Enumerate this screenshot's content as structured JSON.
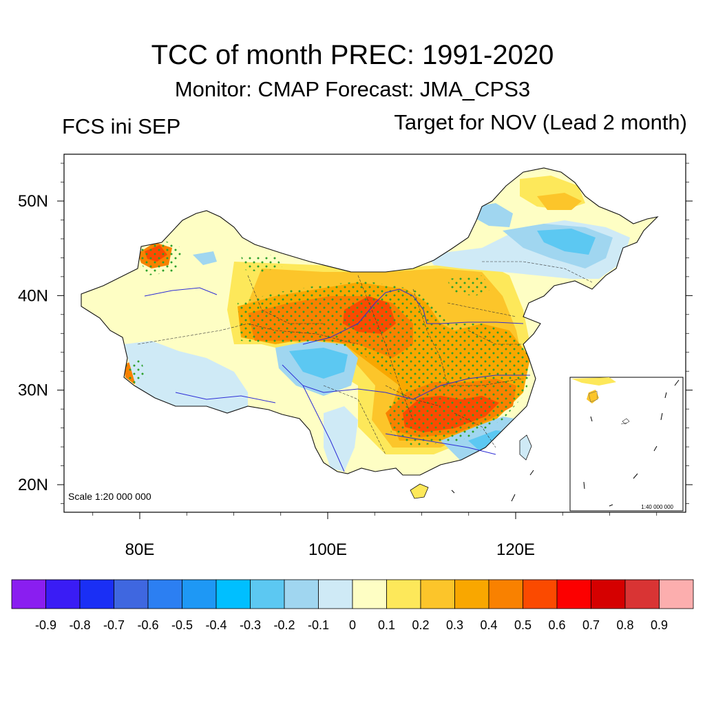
{
  "title": "TCC of month PREC: 1991-2020",
  "subtitle": "Monitor: CMAP   Forecast: JMA_CPS3",
  "left_label": "FCS ini SEP",
  "right_label": "Target for NOV (Lead 2 month)",
  "scale_main": "Scale 1:20 000 000",
  "scale_inset": "1:40 000 000",
  "axes": {
    "lon_ticks": [
      {
        "value": 80,
        "label": "80E"
      },
      {
        "value": 100,
        "label": "100E"
      },
      {
        "value": 120,
        "label": "120E"
      }
    ],
    "lat_ticks": [
      {
        "value": 50,
        "label": "50N"
      },
      {
        "value": 40,
        "label": "40N"
      },
      {
        "value": 30,
        "label": "30N"
      },
      {
        "value": 20,
        "label": "20N"
      }
    ],
    "lon_range": [
      72,
      138
    ],
    "lat_range": [
      17,
      55
    ]
  },
  "colorbar": {
    "colors": [
      "#8a1ef0",
      "#3a1cf5",
      "#1a2ff5",
      "#3f67e0",
      "#2c7ff2",
      "#1e98f5",
      "#00bfff",
      "#5cc8f2",
      "#a0d6f0",
      "#cfeaf6",
      "#fefec4",
      "#fde85a",
      "#fcc52a",
      "#f9a700",
      "#f98100",
      "#fb4a00",
      "#fc0000",
      "#d50000",
      "#d93434",
      "#fcaeae"
    ],
    "labels": [
      "-0.9",
      "-0.8",
      "-0.7",
      "-0.6",
      "-0.5",
      "-0.4",
      "-0.3",
      "-0.2",
      "-0.1",
      "0",
      "0.1",
      "0.2",
      "0.3",
      "0.4",
      "0.5",
      "0.6",
      "0.7",
      "0.8",
      "0.9"
    ]
  },
  "colors": {
    "stipple": "#2ca02c",
    "river": "#2c2cd6",
    "border": "#111111"
  }
}
